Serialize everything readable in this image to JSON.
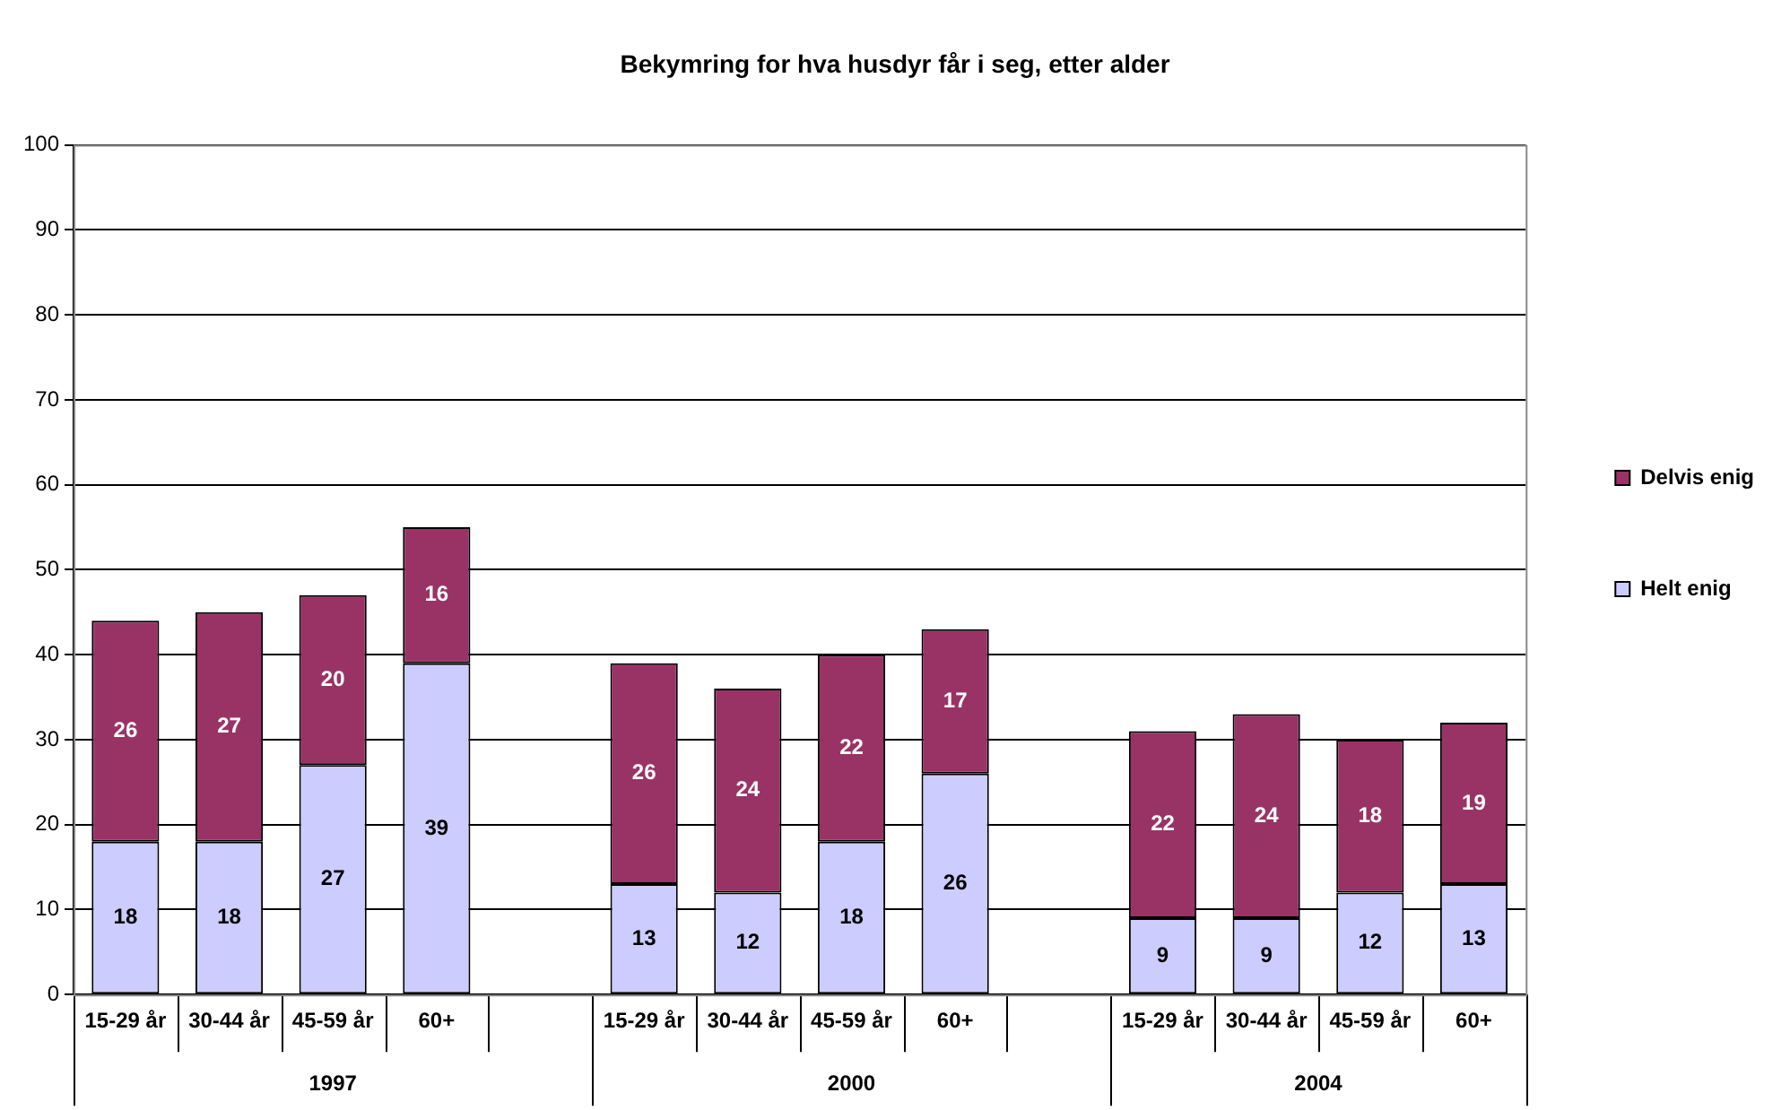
{
  "chart_data": {
    "type": "bar",
    "title": "Bekymring for hva husdyr får i seg, etter alder",
    "categories": [
      "15-29 år",
      "30-44 år",
      "45-59 år",
      "60+",
      null,
      "15-29 år",
      "30-44 år",
      "45-59 år",
      "60+",
      null,
      "15-29 år",
      "30-44 år",
      "45-59 år",
      "60+"
    ],
    "series": [
      {
        "name": "Helt enig",
        "color": "#ccccff",
        "values": [
          18,
          18,
          27,
          39,
          null,
          13,
          12,
          18,
          26,
          null,
          9,
          9,
          12,
          13
        ]
      },
      {
        "name": "Delvis enig",
        "color": "#993366",
        "values": [
          26,
          27,
          20,
          16,
          null,
          26,
          24,
          22,
          17,
          null,
          22,
          24,
          18,
          19
        ]
      }
    ],
    "annotations": [
      "1997",
      "2000",
      "2004"
    ],
    "stacked": true,
    "data_labels": true,
    "ylim": [
      0,
      100
    ],
    "yticks": [
      0,
      10,
      20,
      30,
      40,
      50,
      60,
      70,
      80,
      90,
      100
    ],
    "grid": "y",
    "legend": "right"
  }
}
